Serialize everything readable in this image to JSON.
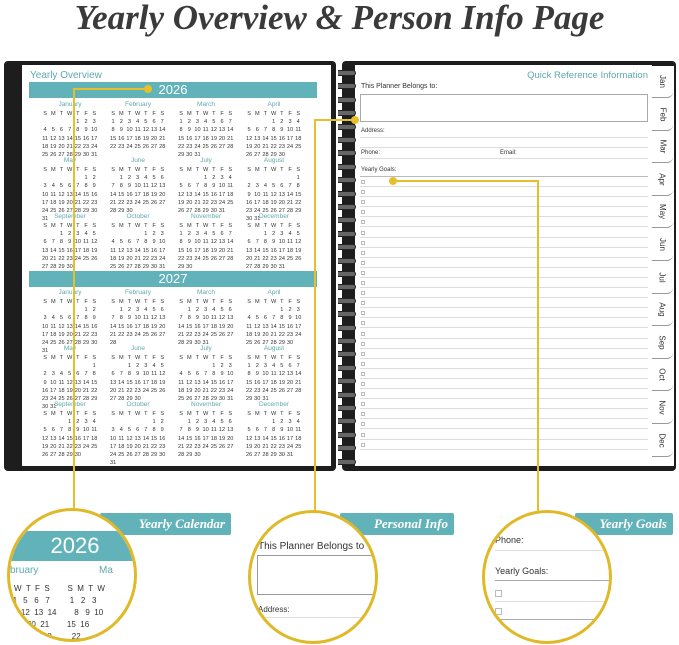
{
  "title": "Yearly Overview & Person Info Page",
  "colors": {
    "teal": "#62b3b9",
    "connector": "#e6c02c",
    "cover": "#1d1d1d"
  },
  "left_page": {
    "heading": "Yearly Overview",
    "weekdays": [
      "S",
      "M",
      "T",
      "W",
      "T",
      "F",
      "S"
    ],
    "years": [
      {
        "year": "2026",
        "months": [
          {
            "name": "January",
            "start": 4,
            "days": 31
          },
          {
            "name": "February",
            "start": 0,
            "days": 28
          },
          {
            "name": "March",
            "start": 0,
            "days": 31
          },
          {
            "name": "April",
            "start": 3,
            "days": 30
          },
          {
            "name": "May",
            "start": 5,
            "days": 31
          },
          {
            "name": "June",
            "start": 1,
            "days": 30
          },
          {
            "name": "July",
            "start": 3,
            "days": 31
          },
          {
            "name": "August",
            "start": 6,
            "days": 31
          },
          {
            "name": "September",
            "start": 2,
            "days": 30
          },
          {
            "name": "October",
            "start": 4,
            "days": 31
          },
          {
            "name": "November",
            "start": 0,
            "days": 30
          },
          {
            "name": "December",
            "start": 2,
            "days": 31
          }
        ]
      },
      {
        "year": "2027",
        "months": [
          {
            "name": "January",
            "start": 5,
            "days": 31
          },
          {
            "name": "February",
            "start": 1,
            "days": 28
          },
          {
            "name": "March",
            "start": 1,
            "days": 31
          },
          {
            "name": "April",
            "start": 4,
            "days": 30
          },
          {
            "name": "May",
            "start": 6,
            "days": 31
          },
          {
            "name": "June",
            "start": 2,
            "days": 30
          },
          {
            "name": "July",
            "start": 4,
            "days": 31
          },
          {
            "name": "August",
            "start": 0,
            "days": 31
          },
          {
            "name": "September",
            "start": 3,
            "days": 30
          },
          {
            "name": "October",
            "start": 5,
            "days": 31
          },
          {
            "name": "November",
            "start": 1,
            "days": 30
          },
          {
            "name": "December",
            "start": 3,
            "days": 31
          }
        ]
      }
    ]
  },
  "right_page": {
    "heading": "Quick Reference Information",
    "belongs_label": "This Planner Belongs to:",
    "address_label": "Address:",
    "phone_label": "Phone:",
    "email_label": "Email:",
    "goals_label": "Yearly Goals:",
    "tabs": [
      "Jan",
      "Feb",
      "Mar",
      "Apr",
      "May",
      "Jun",
      "Jul",
      "Aug",
      "Sep",
      "Oct",
      "Nov",
      "Dec"
    ]
  },
  "callouts": [
    {
      "label": "Yearly Calendar",
      "zoom": {
        "year": "2026",
        "month_left": "bruary",
        "month_right": "Ma",
        "dow": "W  T  F  S        S  M  T  W",
        "rows": [
          "4   5   6   7         1   2   3",
          "1  12  13  14        8   9  10",
          "9  20  21        15  16",
          "7  28         22"
        ]
      }
    },
    {
      "label": "Personal Info",
      "zoom": {
        "belongs": "This Planner Belongs to",
        "address": "Address:"
      }
    },
    {
      "label": "Yearly Goals",
      "zoom": {
        "phone": "Phone:",
        "goals": "Yearly Goals:"
      }
    }
  ]
}
